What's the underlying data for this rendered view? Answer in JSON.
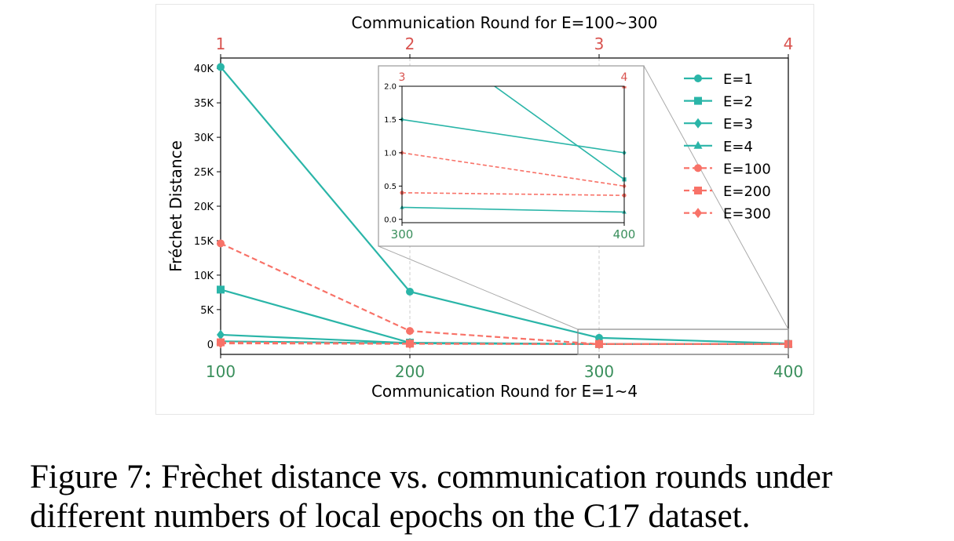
{
  "chart_data": {
    "type": "line",
    "title": "Communication Round for E=100~300",
    "xlabel": "Communication Round for E=1~4",
    "ylabel": "Fréchet Distance",
    "x_bottom": {
      "ticks": [
        100,
        200,
        300,
        400
      ],
      "tick_labels": [
        "100",
        "200",
        "300",
        "400"
      ],
      "color": "#3a8f5c"
    },
    "x_top": {
      "ticks": [
        1,
        2,
        3,
        4
      ],
      "tick_labels": [
        "1",
        "2",
        "3",
        "4"
      ],
      "color": "#d9534f"
    },
    "ylim": [
      -1500,
      41500
    ],
    "y_ticks": [
      0,
      5000,
      10000,
      15000,
      20000,
      25000,
      30000,
      35000,
      40000
    ],
    "y_tick_labels": [
      "0",
      "5K",
      "10K",
      "15K",
      "20K",
      "25K",
      "30K",
      "35K",
      "40K"
    ],
    "legend_position": "top-right",
    "series": [
      {
        "name": "E=1",
        "axis": "bottom",
        "x": [
          100,
          200,
          300,
          400
        ],
        "values": [
          40200,
          7600,
          900,
          80
        ],
        "color": "#2ab5a8",
        "dash": false,
        "marker": "circle"
      },
      {
        "name": "E=2",
        "axis": "bottom",
        "x": [
          100,
          200,
          300,
          400
        ],
        "values": [
          7900,
          200,
          3,
          0.6
        ],
        "color": "#2ab5a8",
        "dash": false,
        "marker": "square"
      },
      {
        "name": "E=3",
        "axis": "bottom",
        "x": [
          100,
          200,
          300,
          400
        ],
        "values": [
          1350,
          150,
          1.5,
          1.0
        ],
        "color": "#2ab5a8",
        "dash": false,
        "marker": "diamond"
      },
      {
        "name": "E=4",
        "axis": "bottom",
        "x": [
          100,
          200,
          300,
          400
        ],
        "values": [
          400,
          100,
          0.18,
          0.11
        ],
        "color": "#2ab5a8",
        "dash": false,
        "marker": "triangle"
      },
      {
        "name": "E=100",
        "axis": "top",
        "x": [
          1,
          2,
          3,
          4
        ],
        "values": [
          14600,
          1900,
          0.4,
          0.36
        ],
        "color": "#f87268",
        "dash": true,
        "marker": "circle"
      },
      {
        "name": "E=200",
        "axis": "top",
        "x": [
          1,
          2,
          3,
          4
        ],
        "values": [
          250,
          60,
          5,
          2.0
        ],
        "color": "#f87268",
        "dash": true,
        "marker": "square"
      },
      {
        "name": "E=300",
        "axis": "top",
        "x": [
          1,
          2,
          3,
          4
        ],
        "values": [
          100,
          30,
          1,
          0.5
        ],
        "color": "#f87268",
        "dash": true,
        "marker": "diamond"
      }
    ],
    "inset": {
      "x_bottom_ticks": [
        300,
        400
      ],
      "x_bottom_labels": [
        "300",
        "400"
      ],
      "x_top_labels": [
        "3",
        "4"
      ],
      "ylim": [
        -0.05,
        2.0
      ],
      "y_ticks": [
        0.0,
        0.5,
        1.0,
        1.5,
        2.0
      ],
      "y_tick_labels": [
        "0.0",
        "0.5",
        "1.0",
        "1.5",
        "2.0"
      ]
    }
  },
  "caption": {
    "line1": "Figure 7: Frèchet distance vs. communication rounds under",
    "line2": "different numbers of local epochs on the C17 dataset."
  }
}
